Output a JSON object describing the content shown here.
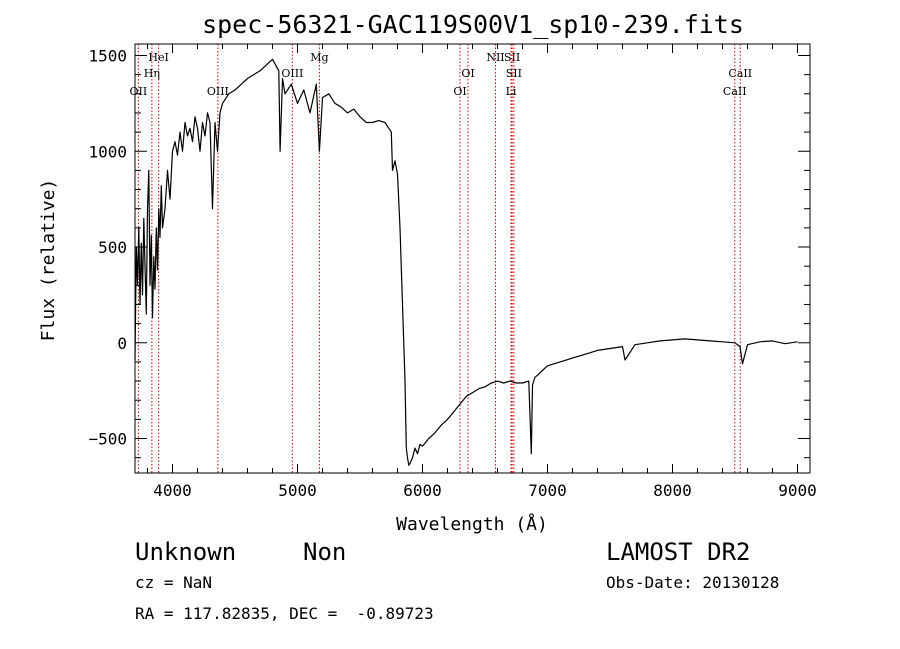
{
  "chart_data": {
    "type": "line",
    "title": "spec-56321-GAC119S00V1_sp10-239.fits",
    "xlabel": "Wavelength (Å)",
    "ylabel": "Flux (relative)",
    "xlim": [
      3700,
      9100
    ],
    "ylim": [
      -680,
      1560
    ],
    "x_ticks": [
      4000,
      5000,
      6000,
      7000,
      8000,
      9000
    ],
    "x_tick_labels": [
      "4000",
      "5000",
      "6000",
      "7000",
      "8000",
      "9000"
    ],
    "y_ticks": [
      -500,
      0,
      500,
      1000,
      1500
    ],
    "y_tick_labels": [
      "−500",
      "0",
      "500",
      "1000",
      "1500"
    ],
    "grid": false,
    "line_color": "#000000",
    "marker_color": "#cc0000",
    "series": [
      {
        "x": [
          3700,
          3710,
          3720,
          3730,
          3740,
          3750,
          3760,
          3770,
          3780,
          3790,
          3800,
          3810,
          3820,
          3830,
          3840,
          3850,
          3860,
          3870,
          3880,
          3890,
          3900,
          3910,
          3920,
          3940,
          3960,
          3980,
          4000,
          4020,
          4040,
          4060,
          4080,
          4100,
          4120,
          4140,
          4160,
          4180,
          4200,
          4220,
          4240,
          4260,
          4280,
          4300,
          4320,
          4340,
          4360,
          4380,
          4400,
          4450,
          4500,
          4550,
          4600,
          4650,
          4700,
          4750,
          4800,
          4850,
          4861,
          4880,
          4900,
          4950,
          5000,
          5050,
          5100,
          5150,
          5175,
          5200,
          5250,
          5300,
          5350,
          5400,
          5450,
          5500,
          5550,
          5600,
          5650,
          5700,
          5750,
          5760,
          5780,
          5800,
          5820,
          5840,
          5860,
          5870,
          5880,
          5890,
          5900,
          5920,
          5940,
          5960,
          5980,
          6000,
          6050,
          6100,
          6150,
          6200,
          6250,
          6300,
          6350,
          6400,
          6450,
          6500,
          6550,
          6600,
          6650,
          6700,
          6750,
          6800,
          6850,
          6870,
          6880,
          6900,
          6920,
          6950,
          7000,
          7100,
          7200,
          7300,
          7400,
          7500,
          7600,
          7620,
          7700,
          7800,
          7900,
          8000,
          8100,
          8200,
          8300,
          8400,
          8500,
          8540,
          8560,
          8600,
          8700,
          8800,
          8900,
          9000
        ],
        "y": [
          -90,
          500,
          300,
          600,
          200,
          520,
          250,
          650,
          400,
          150,
          700,
          900,
          300,
          560,
          130,
          450,
          280,
          600,
          380,
          700,
          550,
          820,
          600,
          700,
          900,
          750,
          1000,
          1050,
          980,
          1100,
          1000,
          1150,
          1080,
          1120,
          1050,
          1180,
          1120,
          1000,
          1150,
          1080,
          1200,
          1150,
          700,
          1150,
          1000,
          1200,
          1250,
          1300,
          1320,
          1350,
          1380,
          1400,
          1420,
          1450,
          1480,
          1420,
          1000,
          1380,
          1300,
          1350,
          1250,
          1320,
          1200,
          1350,
          1000,
          1280,
          1300,
          1250,
          1230,
          1200,
          1220,
          1180,
          1150,
          1150,
          1160,
          1150,
          1100,
          900,
          950,
          880,
          600,
          200,
          -200,
          -550,
          -600,
          -640,
          -630,
          -600,
          -550,
          -580,
          -530,
          -540,
          -500,
          -470,
          -430,
          -400,
          -360,
          -320,
          -280,
          -260,
          -240,
          -230,
          -210,
          -200,
          -210,
          -200,
          -210,
          -210,
          -200,
          -580,
          -220,
          -180,
          -170,
          -150,
          -120,
          -100,
          -80,
          -60,
          -40,
          -30,
          -20,
          -90,
          -10,
          0,
          10,
          15,
          20,
          15,
          10,
          5,
          0,
          -20,
          -110,
          -10,
          5,
          10,
          -5,
          5
        ]
      }
    ],
    "line_markers": [
      {
        "label": "OII",
        "wl": 3727,
        "row": 3
      },
      {
        "label": "HeI",
        "wl": 3889,
        "row": 1
      },
      {
        "label": "Hη",
        "wl": 3835,
        "row": 2
      },
      {
        "label": "OIII",
        "wl": 4363,
        "row": 3
      },
      {
        "label": "OIII",
        "wl": 4959,
        "row": 2
      },
      {
        "label": "Mg",
        "wl": 5175,
        "row": 1
      },
      {
        "label": "OI",
        "wl": 6300,
        "row": 3
      },
      {
        "label": "OI",
        "wl": 6364,
        "row": 2
      },
      {
        "label": "NII",
        "wl": 6584,
        "row": 1
      },
      {
        "label": "SII",
        "wl": 6717,
        "row": 1
      },
      {
        "label": "SII",
        "wl": 6731,
        "row": 2
      },
      {
        "label": "Li",
        "wl": 6708,
        "row": 3
      },
      {
        "label": "CaII",
        "wl": 8542,
        "row": 2
      },
      {
        "label": "CaII",
        "wl": 8498,
        "row": 3
      }
    ]
  },
  "info": {
    "classification": "Unknown",
    "subclass": "Non",
    "survey": "LAMOST DR2",
    "redshift": "cz = NaN",
    "obs_date": "Obs-Date: 20130128",
    "coordinates": "RA = 117.82835, DEC =  -0.89723"
  }
}
